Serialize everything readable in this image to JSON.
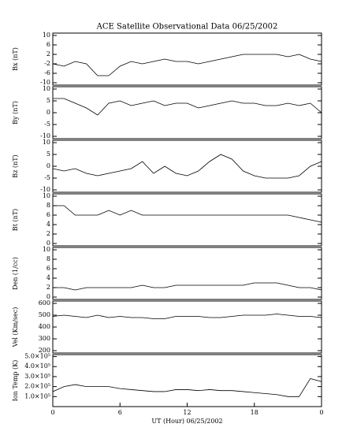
{
  "chart_data": [
    {
      "type": "line",
      "title": "ACE Satellite Observational Data   06/25/2002",
      "ylabel": "Bx (nT)",
      "color": "#000000",
      "x": [
        0,
        1,
        2,
        3,
        4,
        5,
        6,
        7,
        8,
        9,
        10,
        11,
        12,
        13,
        14,
        15,
        16,
        17,
        18,
        19,
        20,
        21,
        22,
        23,
        24
      ],
      "values": [
        -2,
        -3,
        -1,
        -2,
        -7,
        -7,
        -3,
        -1,
        -2,
        -1,
        0,
        -1,
        -1,
        -2,
        -1,
        0,
        1,
        2,
        2,
        2,
        2,
        1,
        2,
        0,
        -1
      ],
      "xlim": [
        0,
        24
      ],
      "ylim": [
        -11,
        11
      ],
      "yticks": [
        10,
        6,
        2,
        -2,
        -6,
        -10
      ]
    },
    {
      "type": "line",
      "ylabel": "By (nT)",
      "color": "#000000",
      "x": [
        0,
        1,
        2,
        3,
        4,
        5,
        6,
        7,
        8,
        9,
        10,
        11,
        12,
        13,
        14,
        15,
        16,
        17,
        18,
        19,
        20,
        21,
        22,
        23,
        24
      ],
      "values": [
        6,
        6,
        4,
        2,
        -1,
        4,
        5,
        3,
        4,
        5,
        3,
        4,
        4,
        2,
        3,
        4,
        5,
        4,
        4,
        3,
        3,
        4,
        3,
        4,
        0
      ],
      "xlim": [
        0,
        24
      ],
      "ylim": [
        -11,
        11
      ],
      "yticks": [
        10,
        5,
        0,
        -5,
        -10
      ]
    },
    {
      "type": "line",
      "ylabel": "Bz (nT)",
      "color": "#000000",
      "x": [
        0,
        1,
        2,
        3,
        4,
        5,
        6,
        7,
        8,
        9,
        10,
        11,
        12,
        13,
        14,
        15,
        16,
        17,
        18,
        19,
        20,
        21,
        22,
        23,
        24
      ],
      "values": [
        -1,
        -2,
        -1,
        -3,
        -4,
        -3,
        -2,
        -1,
        2,
        -3,
        0,
        -3,
        -4,
        -2,
        2,
        5,
        3,
        -2,
        -4,
        -5,
        -5,
        -5,
        -4,
        0,
        2
      ],
      "xlim": [
        0,
        24
      ],
      "ylim": [
        -11,
        11
      ],
      "yticks": [
        10,
        5,
        0,
        -5,
        -10
      ]
    },
    {
      "type": "line",
      "ylabel": "Bt (nT)",
      "color": "#000000",
      "x": [
        0,
        1,
        2,
        3,
        4,
        5,
        6,
        7,
        8,
        9,
        10,
        11,
        12,
        13,
        14,
        15,
        16,
        17,
        18,
        19,
        20,
        21,
        22,
        23,
        24
      ],
      "values": [
        8,
        8,
        6,
        6,
        6,
        7,
        6,
        7,
        6,
        6,
        6,
        6,
        6,
        6,
        6,
        6,
        6,
        6,
        6,
        6,
        6,
        6,
        5.5,
        5,
        4.5
      ],
      "xlim": [
        0,
        24
      ],
      "ylim": [
        -0.5,
        10.5
      ],
      "yticks": [
        10,
        8,
        6,
        4,
        2,
        0
      ]
    },
    {
      "type": "line",
      "ylabel": "Den (1/cc)",
      "color": "#000000",
      "x": [
        0,
        1,
        2,
        3,
        4,
        5,
        6,
        7,
        8,
        9,
        10,
        11,
        12,
        13,
        14,
        15,
        16,
        17,
        18,
        19,
        20,
        21,
        22,
        23,
        24
      ],
      "values": [
        2,
        2,
        1.5,
        2,
        2,
        2,
        2,
        2,
        2.5,
        2,
        2,
        2.5,
        2.5,
        2.5,
        2.5,
        2.5,
        2.5,
        2.5,
        3,
        3,
        3,
        2.5,
        2,
        2,
        1.5
      ],
      "xlim": [
        0,
        24
      ],
      "ylim": [
        -0.5,
        10.5
      ],
      "yticks": [
        10,
        8,
        6,
        4,
        2,
        0
      ]
    },
    {
      "type": "line",
      "ylabel": "Vel (Km/sec)",
      "color": "#000000",
      "x": [
        0,
        1,
        2,
        3,
        4,
        5,
        6,
        7,
        8,
        9,
        10,
        11,
        12,
        13,
        14,
        15,
        16,
        17,
        18,
        19,
        20,
        21,
        22,
        23,
        24
      ],
      "values": [
        490,
        500,
        490,
        480,
        500,
        480,
        490,
        480,
        480,
        470,
        470,
        490,
        490,
        490,
        480,
        480,
        490,
        500,
        500,
        500,
        510,
        500,
        490,
        490,
        480
      ],
      "xlim": [
        0,
        24
      ],
      "ylim": [
        180,
        620
      ],
      "yticks": [
        600,
        500,
        400,
        300,
        200
      ]
    },
    {
      "type": "line",
      "ylabel": "Ion Temp (K)",
      "xlabel": "UT (Hour)  06/25/2002",
      "color": "#000000",
      "x": [
        0,
        1,
        2,
        3,
        4,
        5,
        6,
        7,
        8,
        9,
        10,
        11,
        12,
        13,
        14,
        15,
        16,
        17,
        18,
        19,
        20,
        21,
        22,
        23,
        24
      ],
      "values": [
        150000,
        200000,
        220000,
        200000,
        200000,
        200000,
        180000,
        170000,
        160000,
        150000,
        150000,
        170000,
        170000,
        160000,
        170000,
        160000,
        160000,
        150000,
        140000,
        130000,
        120000,
        100000,
        100000,
        280000,
        250000
      ],
      "xlim": [
        0,
        24
      ],
      "xticks": [
        0,
        6,
        12,
        18,
        {
          "value": 24,
          "label": "0"
        }
      ],
      "ylim": [
        0,
        520000
      ],
      "yticks": [
        {
          "value": 500000,
          "label": "5.0×10⁵"
        },
        {
          "value": 400000,
          "label": "4.0×10⁵"
        },
        {
          "value": 300000,
          "label": "3.0×10⁵"
        },
        {
          "value": 200000,
          "label": "2.0×10⁵"
        },
        {
          "value": 100000,
          "label": "1.0×10⁵"
        }
      ]
    }
  ]
}
